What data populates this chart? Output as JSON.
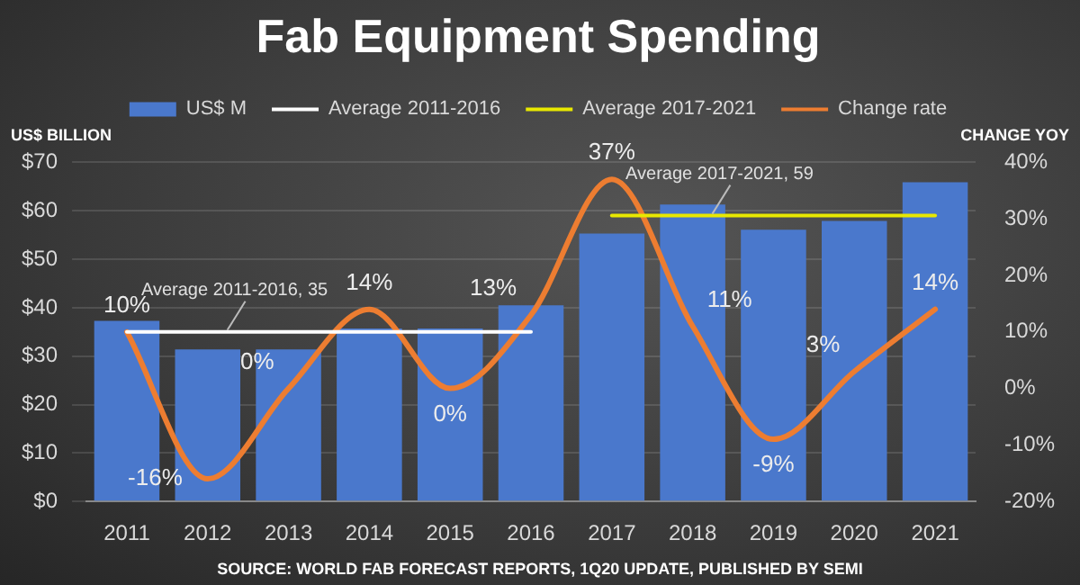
{
  "chart_data": {
    "type": "bar",
    "title": "Fab Equipment Spending",
    "ylabel": "US$ BILLION",
    "y2label": "CHANGE YOY",
    "categories": [
      "2011",
      "2012",
      "2013",
      "2014",
      "2015",
      "2016",
      "2017",
      "2018",
      "2019",
      "2020",
      "2021"
    ],
    "series": [
      {
        "name": "US$ M",
        "color": "#4a78cc",
        "values": [
          37.3,
          31.4,
          31.4,
          35.7,
          35.7,
          40.5,
          55.3,
          61.3,
          56.1,
          57.9,
          65.9
        ]
      },
      {
        "name": "Average 2011-2016",
        "type": "line",
        "color": "#ffffff",
        "values": [
          35,
          35,
          35,
          35,
          35,
          35,
          null,
          null,
          null,
          null,
          null
        ]
      },
      {
        "name": "Average 2017-2021",
        "type": "line",
        "color": "#e8e800",
        "values": [
          null,
          null,
          null,
          null,
          null,
          null,
          59,
          59,
          59,
          59,
          59
        ]
      },
      {
        "name": "Change rate",
        "type": "line",
        "axis": "y2",
        "color": "#ed7d31",
        "values": [
          10,
          -16,
          0,
          14,
          0,
          13,
          37,
          11,
          -9,
          3,
          14
        ],
        "value_labels": [
          "10%",
          "-16%",
          "0%",
          "14%",
          "0%",
          "13%",
          "37%",
          "11%",
          "-9%",
          "3%",
          "14%"
        ]
      }
    ],
    "ylim": [
      0,
      70
    ],
    "yticks": [
      {
        "value": 0,
        "label": "$0"
      },
      {
        "value": 10,
        "label": "$10"
      },
      {
        "value": 20,
        "label": "$20"
      },
      {
        "value": 30,
        "label": "$30"
      },
      {
        "value": 40,
        "label": "$40"
      },
      {
        "value": 50,
        "label": "$50"
      },
      {
        "value": 60,
        "label": "$60"
      },
      {
        "value": 70,
        "label": "$70"
      }
    ],
    "y2lim": [
      -20,
      40
    ],
    "y2ticks": [
      {
        "value": -20,
        "label": "-20%"
      },
      {
        "value": -10,
        "label": "-10%"
      },
      {
        "value": 0,
        "label": "0%"
      },
      {
        "value": 10,
        "label": "10%"
      },
      {
        "value": 20,
        "label": "20%"
      },
      {
        "value": 30,
        "label": "30%"
      },
      {
        "value": 40,
        "label": "40%"
      }
    ],
    "grid": "y",
    "legend": "top",
    "marker": "none",
    "line_style": "solid",
    "annotations": [
      {
        "text": "Average 2011-2016, 35",
        "x": "2013",
        "y": 35
      },
      {
        "text": "Average 2017-2021, 59",
        "x": "2019",
        "y": 59
      },
      "SOURCE: WORLD FAB FORECAST REPORTS, 1Q20 UPDATE, PUBLISHED BY SEMI"
    ]
  }
}
